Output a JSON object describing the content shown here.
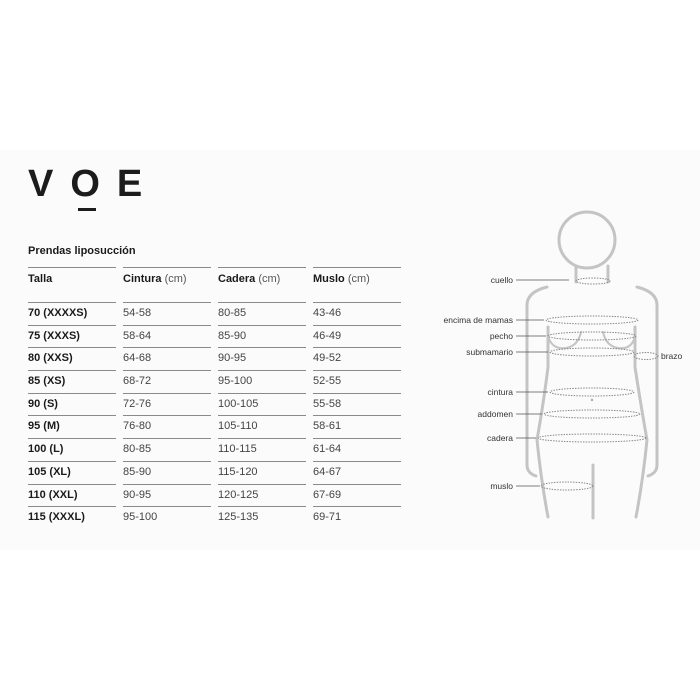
{
  "brand": {
    "logo_text": "VOE"
  },
  "table": {
    "title": "Prendas liposucción",
    "headers": [
      {
        "label": "Talla",
        "unit": ""
      },
      {
        "label": "Cintura",
        "unit": "(cm)"
      },
      {
        "label": "Cadera",
        "unit": "(cm)"
      },
      {
        "label": "Muslo",
        "unit": "(cm)"
      }
    ],
    "rows": [
      [
        "70 (XXXXS)",
        "54-58",
        "80-85",
        "43-46"
      ],
      [
        "75 (XXXS)",
        "58-64",
        "85-90",
        "46-49"
      ],
      [
        "80 (XXS)",
        "64-68",
        "90-95",
        "49-52"
      ],
      [
        "85 (XS)",
        "68-72",
        "95-100",
        "52-55"
      ],
      [
        "90 (S)",
        "72-76",
        "100-105",
        "55-58"
      ],
      [
        "95 (M)",
        "76-80",
        "105-110",
        "58-61"
      ],
      [
        "100 (L)",
        "80-85",
        "110-115",
        "61-64"
      ],
      [
        "105 (XL)",
        "85-90",
        "115-120",
        "64-67"
      ],
      [
        "110 (XXL)",
        "90-95",
        "120-125",
        "67-69"
      ],
      [
        "115 (XXXL)",
        "95-100",
        "125-135",
        "69-71"
      ]
    ]
  },
  "figure": {
    "labels": {
      "cuello": "cuello",
      "encima": "encima de mamas",
      "pecho": "pecho",
      "submamario": "submamario",
      "brazo": "brazo",
      "cintura": "cintura",
      "addomen": "addomen",
      "cadera": "cadera",
      "muslo": "muslo"
    },
    "line_color": "#c4c4c4"
  }
}
